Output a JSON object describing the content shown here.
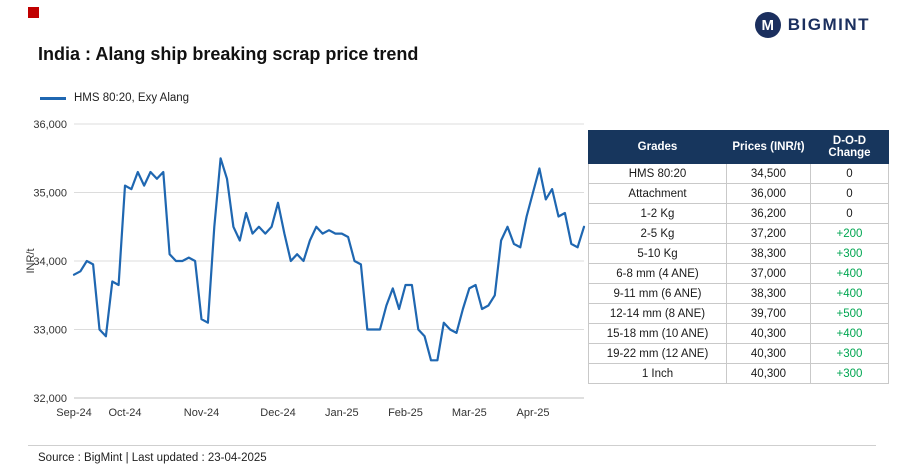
{
  "brand": {
    "name": "BIGMINT",
    "icon": "M",
    "color": "#1b2f5e",
    "accent_red": "#c00000"
  },
  "title": "India : Alang ship breaking scrap price trend",
  "legend": {
    "label": "HMS 80:20, Exy Alang"
  },
  "chart_data": {
    "type": "line",
    "title": "India : Alang ship breaking scrap price trend",
    "ylabel": "INR/t",
    "xlabel": "",
    "ylim": [
      32000,
      36000
    ],
    "yticks": [
      32000,
      33000,
      34000,
      35000,
      36000
    ],
    "grid": true,
    "legend_position": "top-left",
    "line_color": "#1f67b1",
    "x_labels": [
      "Sep-24",
      "Oct-24",
      "Nov-24",
      "Dec-24",
      "Jan-25",
      "Feb-25",
      "Mar-25",
      "Apr-25"
    ],
    "x_label_indices": [
      0,
      8,
      20,
      32,
      42,
      52,
      62,
      72
    ],
    "series": [
      {
        "name": "HMS 80:20, Exy Alang",
        "values": [
          33800,
          33850,
          34000,
          33950,
          33000,
          32900,
          33700,
          33650,
          35100,
          35050,
          35300,
          35100,
          35300,
          35200,
          35300,
          34100,
          34000,
          34000,
          34050,
          34000,
          33150,
          33100,
          34500,
          35500,
          35200,
          34500,
          34300,
          34700,
          34400,
          34500,
          34400,
          34500,
          34850,
          34400,
          34000,
          34100,
          34000,
          34300,
          34500,
          34400,
          34450,
          34400,
          34400,
          34350,
          34000,
          33950,
          33000,
          33000,
          33000,
          33350,
          33600,
          33300,
          33650,
          33650,
          33000,
          32900,
          32550,
          32550,
          33100,
          33000,
          32950,
          33300,
          33600,
          33650,
          33300,
          33350,
          33500,
          34300,
          34500,
          34250,
          34200,
          34650,
          35000,
          35350,
          34900,
          35050,
          34650,
          34700,
          34250,
          34200,
          34500
        ]
      }
    ]
  },
  "table": {
    "columns": [
      "Grades",
      "Prices (INR/t)",
      "D-O-D Change"
    ],
    "header_bg": "#17365d",
    "positive_color": "#00a651",
    "rows": [
      {
        "grade": "HMS 80:20",
        "price": "34,500",
        "change": "0"
      },
      {
        "grade": "Attachment",
        "price": "36,000",
        "change": "0"
      },
      {
        "grade": "1-2 Kg",
        "price": "36,200",
        "change": "0"
      },
      {
        "grade": "2-5 Kg",
        "price": "37,200",
        "change": "+200"
      },
      {
        "grade": "5-10 Kg",
        "price": "38,300",
        "change": "+300"
      },
      {
        "grade": "6-8 mm (4 ANE)",
        "price": "37,000",
        "change": "+400"
      },
      {
        "grade": "9-11 mm (6 ANE)",
        "price": "38,300",
        "change": "+400"
      },
      {
        "grade": "12-14 mm (8 ANE)",
        "price": "39,700",
        "change": "+500"
      },
      {
        "grade": "15-18 mm (10 ANE)",
        "price": "40,300",
        "change": "+400"
      },
      {
        "grade": "19-22 mm (12 ANE)",
        "price": "40,300",
        "change": "+300"
      },
      {
        "grade": "1 Inch",
        "price": "40,300",
        "change": "+300"
      }
    ]
  },
  "footer": {
    "source": "Source : BigMint | Last updated : 23-04-2025"
  }
}
